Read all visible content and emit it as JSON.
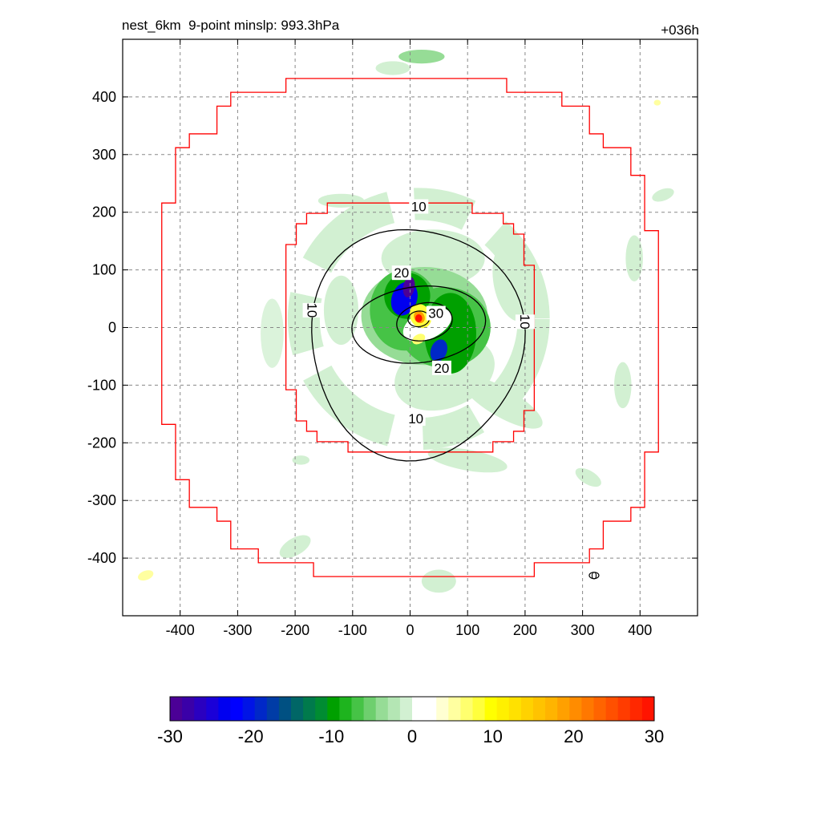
{
  "header": {
    "left_title": "nest_6km  9-point minslp: 993.3hPa",
    "right_title": "+036h"
  },
  "chart_data": {
    "type": "heatmap",
    "title": "nest_6km  9-point minslp: 993.3hPa",
    "right_string": "+036h",
    "xlim": [
      -500,
      500
    ],
    "ylim": [
      -500,
      500
    ],
    "x_ticks": [
      -400,
      -300,
      -200,
      -100,
      0,
      100,
      200,
      300,
      400
    ],
    "y_ticks": [
      400,
      300,
      200,
      100,
      0,
      -100,
      -200,
      -300,
      -400
    ],
    "x_tick_labels": [
      "-400",
      "-300",
      "-200",
      "-100",
      "0",
      "100",
      "200",
      "300",
      "400"
    ],
    "y_tick_labels": [
      "400",
      "300",
      "200",
      "100",
      "0",
      "-100",
      "-200",
      "-300",
      "-400"
    ],
    "grid": true,
    "colorbar": {
      "min": -30,
      "max": 30,
      "ticks": [
        -30,
        -20,
        -10,
        0,
        10,
        20,
        30
      ],
      "tick_labels": [
        "-30",
        "-20",
        "-10",
        "0",
        "10",
        "20",
        "30"
      ],
      "colors": [
        "#4b0096",
        "#3a00a8",
        "#2a00c0",
        "#1a00d8",
        "#0000f0",
        "#0000ff",
        "#0014e6",
        "#0028c8",
        "#003ca6",
        "#005082",
        "#006666",
        "#007a4c",
        "#008c32",
        "#00a000",
        "#1eb41e",
        "#46c346",
        "#6ecf6e",
        "#96dc96",
        "#b4e6b4",
        "#d2f0d2",
        "#ffffff",
        "#ffffff",
        "#ffffd2",
        "#ffffa0",
        "#ffff6e",
        "#ffff3c",
        "#ffff00",
        "#fff000",
        "#ffe100",
        "#ffd200",
        "#ffc300",
        "#ffb400",
        "#ffa000",
        "#ff8c00",
        "#ff7800",
        "#ff6400",
        "#ff5000",
        "#ff3c00",
        "#ff2800",
        "#ff1400"
      ]
    },
    "contour_labels": [
      "10",
      "10",
      "10",
      "10",
      "20",
      "20",
      "30"
    ],
    "isolated_contour_label": "0",
    "center_point": [
      15,
      15
    ],
    "inner_boundary_halfwidth_km": 240,
    "outer_boundary_halfwidth_km": 430
  }
}
